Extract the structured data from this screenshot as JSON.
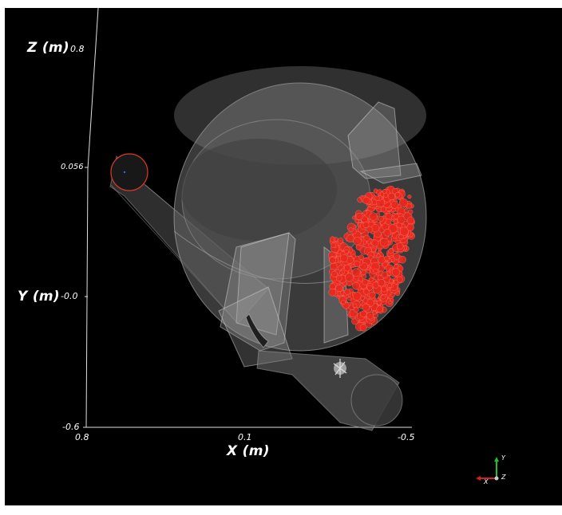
{
  "scene": {
    "background_color": "#000000",
    "particle_color": "#e8281e",
    "geometry_color": "#bfbfbf"
  },
  "axes": {
    "z_title": "Z (m)",
    "z_ticks": [
      "0.8",
      "0.056"
    ],
    "y_title": "Y (m)",
    "y_ticks": [
      "-0.0",
      "-0.6"
    ],
    "x_title": "X (m)",
    "x_ticks": [
      "0.8",
      "0.1",
      "-0.5"
    ]
  },
  "orientation_widget": {
    "x_label": "X",
    "y_label": "Y",
    "z_label": "Z",
    "x_color": "#d42020",
    "y_color": "#22c022",
    "z_color": "#cccccc"
  }
}
